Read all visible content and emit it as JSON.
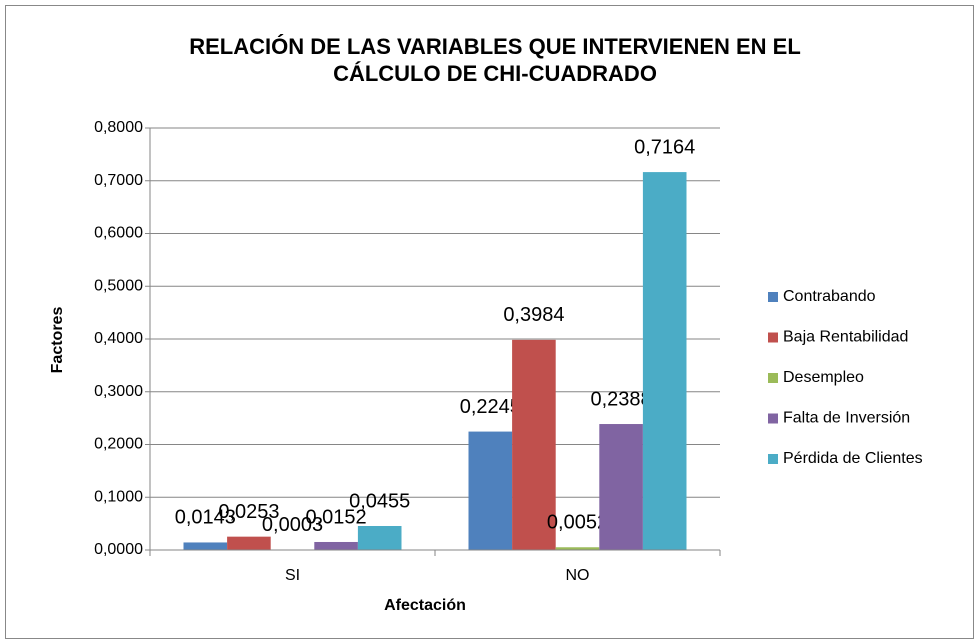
{
  "chart_data": {
    "type": "bar",
    "title": "RELACIÓN DE LAS VARIABLES QUE INTERVIENEN EN EL CÁLCULO DE CHI-CUADRADO",
    "x_label": "Afectación",
    "y_label": "Factores",
    "categories": [
      "SI",
      "NO"
    ],
    "series": [
      {
        "name": "Contrabando",
        "color": "#4f81bd",
        "values": [
          0.0143,
          0.2245
        ],
        "value_labels": [
          "0,0143",
          "0,2245"
        ]
      },
      {
        "name": "Baja Rentabilidad",
        "color": "#c0504d",
        "values": [
          0.0253,
          0.3984
        ],
        "value_labels": [
          "0,0253",
          "0,3984"
        ]
      },
      {
        "name": "Desempleo",
        "color": "#9bbb59",
        "values": [
          0.0003,
          0.0052
        ],
        "value_labels": [
          "0,0003",
          "0,0052"
        ]
      },
      {
        "name": "Falta de Inversión",
        "color": "#8064a2",
        "values": [
          0.0152,
          0.2388
        ],
        "value_labels": [
          "0,0152",
          "0,2388"
        ]
      },
      {
        "name": "Pérdida de Clientes",
        "color": "#4bacc6",
        "values": [
          0.0455,
          0.7164
        ],
        "value_labels": [
          "0,0455",
          "0,7164"
        ]
      }
    ],
    "ylim": [
      0,
      0.8
    ],
    "yticks": [
      {
        "value": 0,
        "label": "0,0000"
      },
      {
        "value": 0.1,
        "label": "0,1000"
      },
      {
        "value": 0.2,
        "label": "0,2000"
      },
      {
        "value": 0.3,
        "label": "0,3000"
      },
      {
        "value": 0.4,
        "label": "0,4000"
      },
      {
        "value": 0.5,
        "label": "0,5000"
      },
      {
        "value": 0.6,
        "label": "0,6000"
      },
      {
        "value": 0.7,
        "label": "0,7000"
      },
      {
        "value": 0.8,
        "label": "0,8000"
      }
    ],
    "grid": true,
    "legend": "right"
  }
}
